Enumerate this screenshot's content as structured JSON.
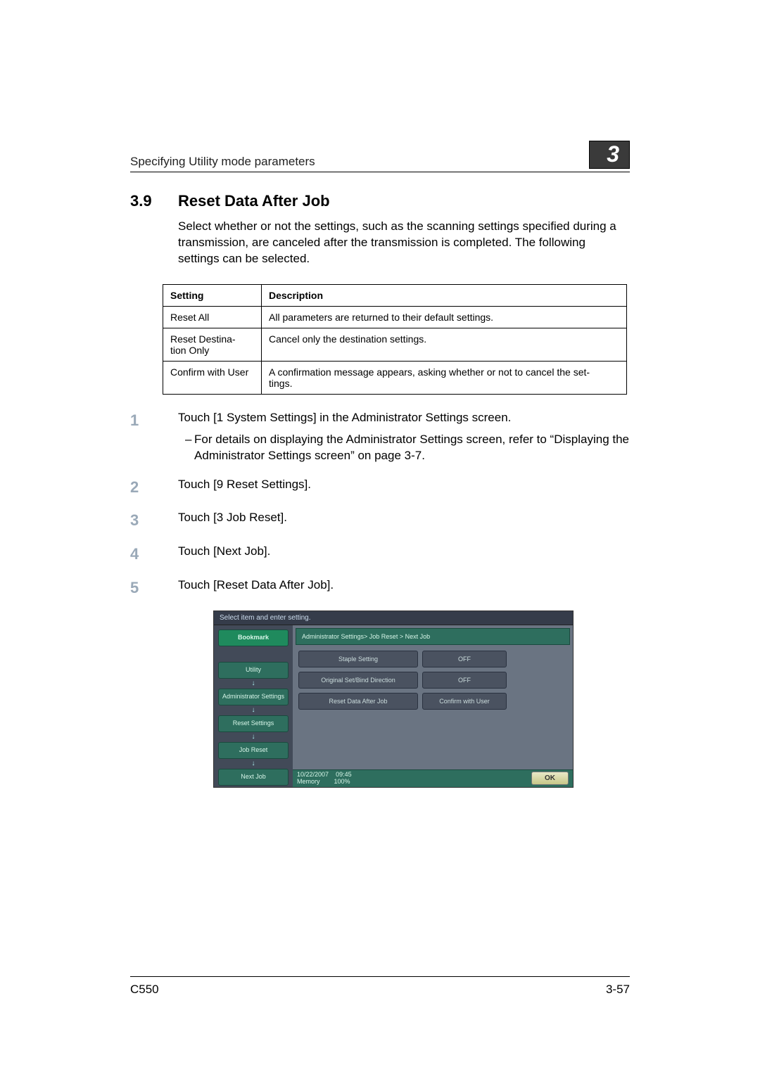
{
  "header": {
    "running_title": "Specifying Utility mode parameters",
    "chapter_number": "3"
  },
  "section": {
    "number": "3.9",
    "title": "Reset Data After Job",
    "intro": "Select whether or not the settings, such as the scanning settings specified during a transmission, are canceled after the transmission is completed. The following settings can be selected."
  },
  "table": {
    "headers": [
      "Setting",
      "Description"
    ],
    "rows": [
      [
        "Reset All",
        "All parameters are returned to their default settings."
      ],
      [
        "Reset Destination Only",
        "Cancel only the destination settings."
      ],
      [
        "Confirm with User",
        "A confirmation message appears, asking whether or not to cancel the settings."
      ]
    ]
  },
  "steps": [
    {
      "num": "1",
      "text": "Touch [1 System Settings] in the Administrator Settings screen.",
      "sub": "For details on displaying the Administrator Settings screen, refer to “Displaying the Administrator Settings screen” on page 3-7."
    },
    {
      "num": "2",
      "text": "Touch [9 Reset Settings]."
    },
    {
      "num": "3",
      "text": "Touch [3 Job Reset]."
    },
    {
      "num": "4",
      "text": "Touch [Next Job]."
    },
    {
      "num": "5",
      "text": "Touch [Reset Data After Job]."
    }
  ],
  "screenshot": {
    "topbar": "Select item and enter setting.",
    "sidebar": {
      "bookmark": "Bookmark",
      "items": [
        "Utility",
        "Administrator Settings",
        "Reset Settings",
        "Job Reset",
        "Next Job"
      ]
    },
    "breadcrumb": "Administrator Settings> Job Reset > Next Job",
    "rows": [
      {
        "left": "Staple Setting",
        "right": "OFF"
      },
      {
        "left": "Original Set/Bind Direction",
        "right": "OFF"
      },
      {
        "left": "Reset Data After Job",
        "right": "Confirm with User"
      }
    ],
    "footer": {
      "date": "10/22/2007",
      "time": "09:45",
      "memory": "Memory",
      "memory_val": "100%",
      "ok": "OK"
    }
  },
  "footer": {
    "left": "C550",
    "right": "3-57"
  }
}
